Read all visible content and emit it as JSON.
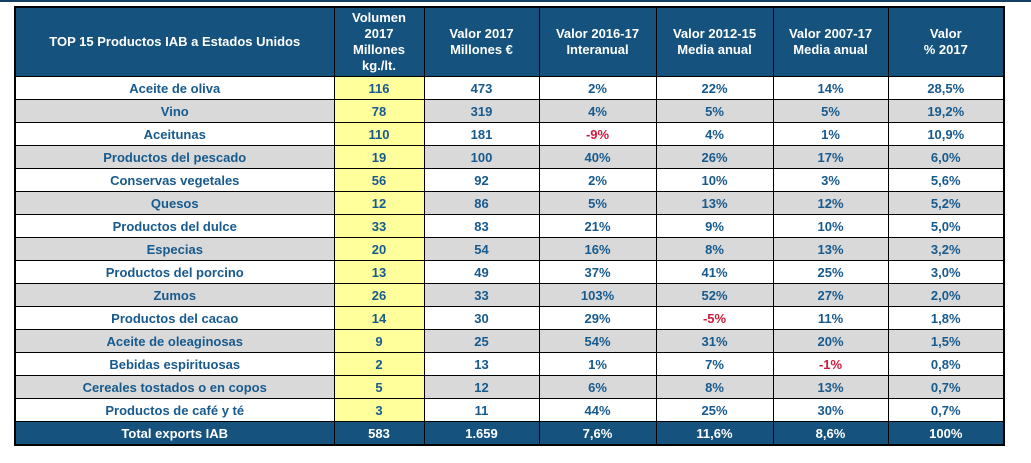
{
  "chart_data": {
    "type": "table",
    "title": "TOP 15 Productos IAB a Estados Unidos",
    "columns": [
      "TOP 15 Productos IAB a Estados Unidos",
      "Volumen\n2017\nMillones\nkg./lt.",
      "Valor 2017\nMillones €",
      "Valor 2016-17\nInteranual",
      "Valor 2012-15\nMedia anual",
      "Valor 2007-17\nMedia anual",
      "Valor\n% 2017"
    ],
    "rows": [
      [
        "Aceite de oliva",
        "116",
        "473",
        "2%",
        "22%",
        "14%",
        "28,5%"
      ],
      [
        "Vino",
        "78",
        "319",
        "4%",
        "5%",
        "5%",
        "19,2%"
      ],
      [
        "Aceitunas",
        "110",
        "181",
        "-9%",
        "4%",
        "1%",
        "10,9%"
      ],
      [
        "Productos del pescado",
        "19",
        "100",
        "40%",
        "26%",
        "17%",
        "6,0%"
      ],
      [
        "Conservas vegetales",
        "56",
        "92",
        "2%",
        "10%",
        "3%",
        "5,6%"
      ],
      [
        "Quesos",
        "12",
        "86",
        "5%",
        "13%",
        "12%",
        "5,2%"
      ],
      [
        "Productos del dulce",
        "33",
        "83",
        "21%",
        "9%",
        "10%",
        "5,0%"
      ],
      [
        "Especias",
        "20",
        "54",
        "16%",
        "8%",
        "13%",
        "3,2%"
      ],
      [
        "Productos del porcino",
        "13",
        "49",
        "37%",
        "41%",
        "25%",
        "3,0%"
      ],
      [
        "Zumos",
        "26",
        "33",
        "103%",
        "52%",
        "27%",
        "2,0%"
      ],
      [
        "Productos del cacao",
        "14",
        "30",
        "29%",
        "-5%",
        "11%",
        "1,8%"
      ],
      [
        "Aceite de oleaginosas",
        "9",
        "25",
        "54%",
        "31%",
        "20%",
        "1,5%"
      ],
      [
        "Bebidas espirituosas",
        "2",
        "13",
        "1%",
        "7%",
        "-1%",
        "0,8%"
      ],
      [
        "Cereales tostados o en copos",
        "5",
        "12",
        "6%",
        "8%",
        "13%",
        "0,7%"
      ],
      [
        "Productos de café y té",
        "3",
        "11",
        "44%",
        "25%",
        "30%",
        "0,7%"
      ]
    ],
    "total_row": [
      "Total exports IAB",
      "583",
      "1.659",
      "7,6%",
      "11,6%",
      "8,6%",
      "100%"
    ],
    "layout_hints": {
      "striping": "even rows gray",
      "volumen_column_highlight": "yellow",
      "negative_values": "red"
    },
    "colors": {
      "header_bg": "#15537E",
      "total_bg": "#15537E",
      "row_alt_bg": "#D9D9D9",
      "volumen_bg": "#FFFF9C",
      "text_blue": "#175A8E",
      "negative_red": "#CE1B3C",
      "border": "#000000"
    }
  }
}
